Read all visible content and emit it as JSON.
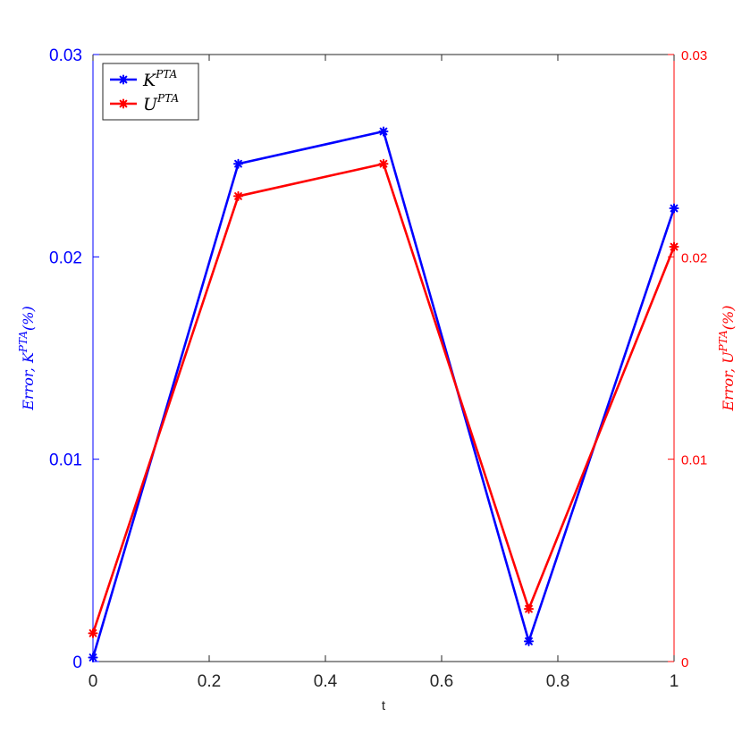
{
  "chart_data": {
    "type": "line",
    "xlabel": "t",
    "ylabel_left": "Error, K",
    "ylabel_left_sup": "PTA",
    "ylabel_left_suffix": "(%)",
    "ylabel_right": "Error, U",
    "ylabel_right_sup": "PTA",
    "ylabel_right_suffix": "(%)",
    "x_ticks": [
      "0",
      "0.2",
      "0.4",
      "0.6",
      "0.8",
      "1"
    ],
    "y_left_ticks": [
      "0",
      "0.01",
      "0.02",
      "0.03"
    ],
    "y_right_ticks": [
      "0",
      "0.01",
      "0.02",
      "0.03"
    ],
    "xlim": [
      0,
      1
    ],
    "ylim_left": [
      0,
      0.03
    ],
    "ylim_right": [
      0,
      0.03
    ],
    "grid": false,
    "legend_position": "top-left",
    "series": [
      {
        "name": "K",
        "name_sup": "PTA",
        "color": "#0000ff",
        "axis": "left",
        "marker": "asterisk",
        "x": [
          0,
          0.25,
          0.5,
          0.75,
          1.0
        ],
        "y": [
          0.0002,
          0.0246,
          0.0262,
          0.001,
          0.0224
        ]
      },
      {
        "name": "U",
        "name_sup": "PTA",
        "color": "#ff0000",
        "axis": "right",
        "marker": "asterisk",
        "x": [
          0,
          0.25,
          0.5,
          0.75,
          1.0
        ],
        "y": [
          0.0014,
          0.023,
          0.0246,
          0.0026,
          0.0205
        ]
      }
    ]
  }
}
